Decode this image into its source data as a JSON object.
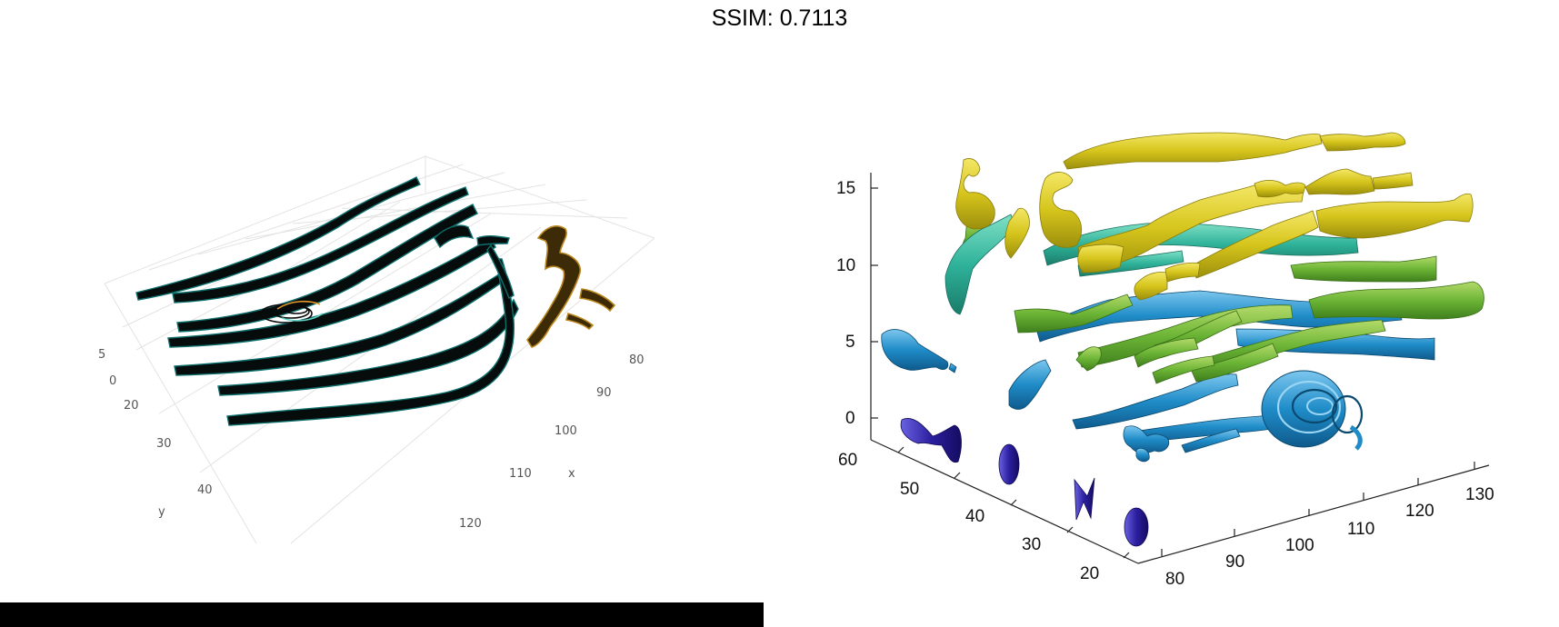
{
  "title": "SSIM: 0.7113",
  "chart_data": [
    {
      "type": "3d-surface",
      "panel": "left",
      "render": "dark tube surfaces",
      "axes": {
        "x": {
          "label": "x",
          "ticks": [
            "80",
            "90",
            "100",
            "110",
            "120"
          ]
        },
        "y": {
          "label": "y",
          "ticks": [
            "20",
            "30",
            "40"
          ]
        },
        "z": {
          "label": "",
          "ticks": [
            "0",
            "5"
          ]
        }
      },
      "grid": true
    },
    {
      "type": "3d-surface",
      "panel": "right",
      "render": "colored stream tubes",
      "axes": {
        "x": {
          "label": "",
          "ticks": [
            "80",
            "90",
            "100",
            "110",
            "120",
            "130"
          ]
        },
        "y": {
          "label": "",
          "ticks": [
            "20",
            "30",
            "40",
            "50",
            "60"
          ]
        },
        "z": {
          "label": "",
          "ticks": [
            "0",
            "5",
            "10",
            "15"
          ]
        }
      },
      "grid": false,
      "colormap": [
        "#2c1fa0",
        "#1f8cc8",
        "#28b49c",
        "#7ec23a",
        "#d8c81a"
      ]
    }
  ]
}
